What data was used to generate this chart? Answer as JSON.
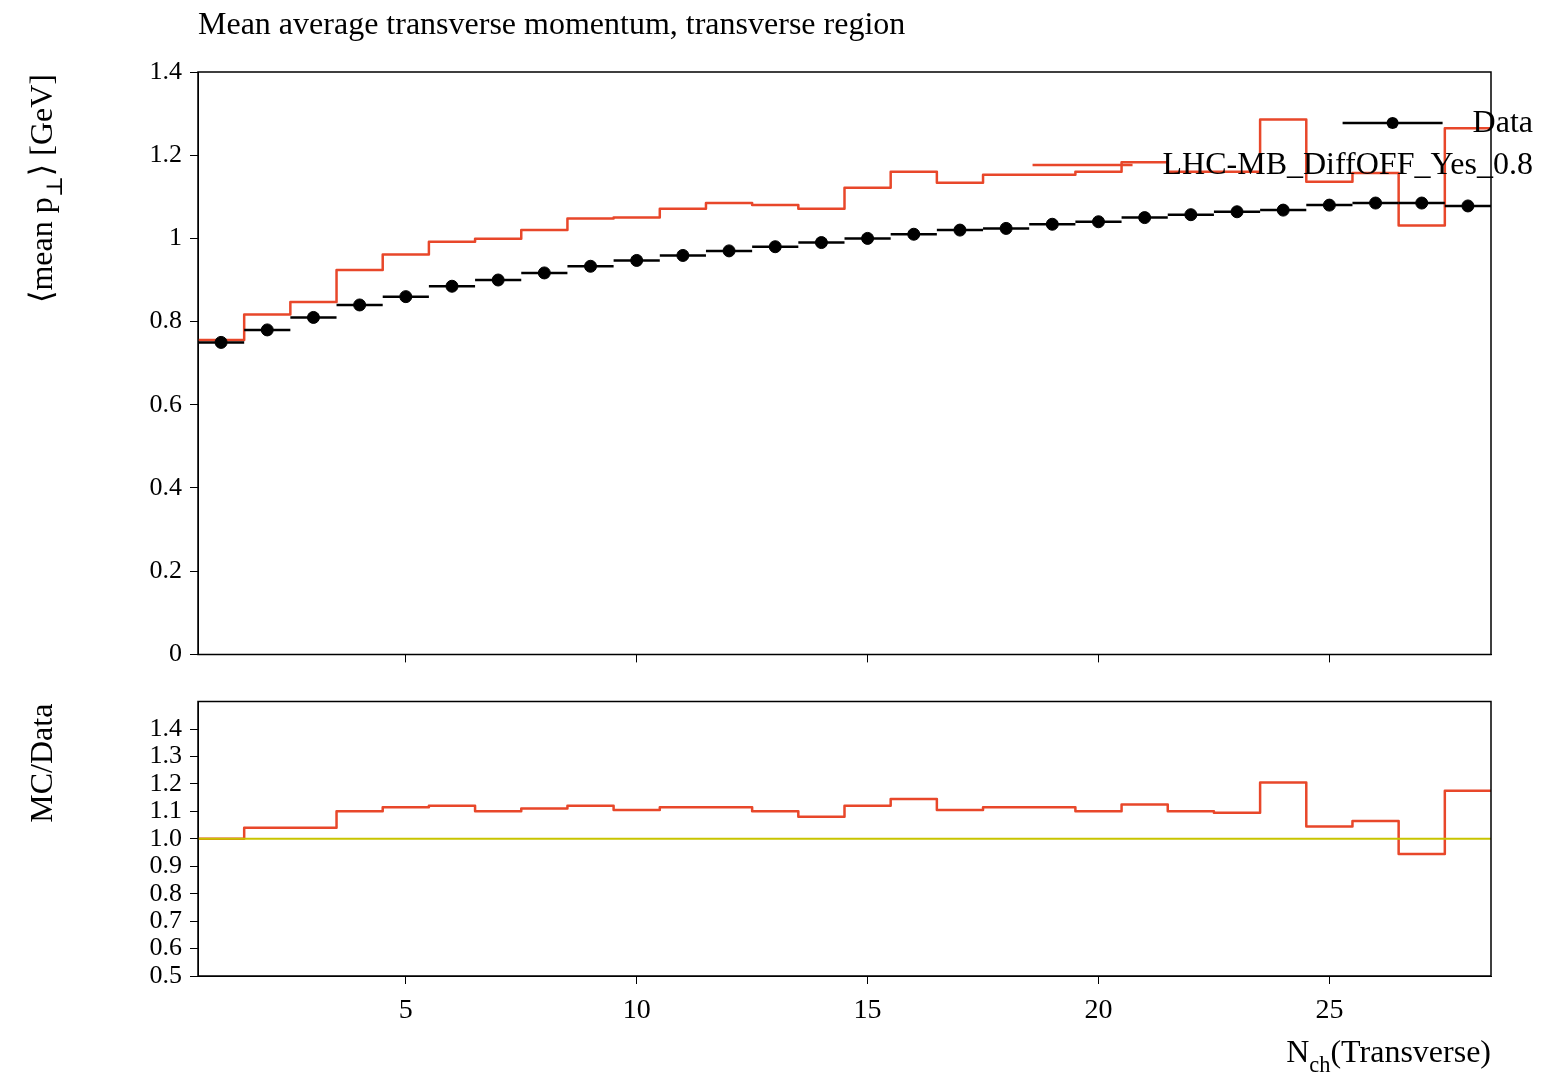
{
  "chart_data": [
    {
      "type": "histogram",
      "bins": [
        0.5,
        1.5,
        2.5,
        3.5,
        4.5,
        5.5,
        6.5,
        7.5,
        8.5,
        9.5,
        10.5,
        11.5,
        12.5,
        13.5,
        14.5,
        15.5,
        16.5,
        17.5,
        18.5,
        19.5,
        20.5,
        21.5,
        22.5,
        23.5,
        24.5,
        25.5,
        26.5,
        27.5,
        28.5
      ],
      "title": "Mean average transverse momentum, transverse region",
      "ylabel": "⟨mean p$_{⊥}$⟩ [GeV]",
      "x": [
        1,
        2,
        3,
        4,
        5,
        6,
        7,
        8,
        9,
        10,
        11,
        12,
        13,
        14,
        15,
        16,
        17,
        18,
        19,
        20,
        21,
        22,
        23,
        24,
        25,
        26,
        27,
        28
      ],
      "series": [
        {
          "name": "Data",
          "type": "scatter",
          "color": "#000000",
          "marker": "circle",
          "values": [
            0.75,
            0.78,
            0.81,
            0.84,
            0.86,
            0.885,
            0.9,
            0.917,
            0.933,
            0.947,
            0.959,
            0.97,
            0.98,
            0.99,
            1.0,
            1.01,
            1.02,
            1.024,
            1.034,
            1.04,
            1.05,
            1.057,
            1.064,
            1.068,
            1.08,
            1.085,
            1.085,
            1.078
          ],
          "xerrors": [
            0.5,
            0.5,
            0.5,
            0.5,
            0.5,
            0.5,
            0.5,
            0.5,
            0.5,
            0.5,
            0.5,
            0.5,
            0.5,
            0.5,
            0.5,
            0.5,
            0.5,
            0.5,
            0.5,
            0.5,
            0.5,
            0.5,
            0.5,
            0.5,
            0.5,
            0.5,
            0.5,
            0.5
          ]
        },
        {
          "name": "LHC-MB_DiffOFF_Yes_0.8",
          "color": "#e8472a",
          "values": [
            0.756,
            0.817,
            0.847,
            0.924,
            0.961,
            0.992,
            0.999,
            1.02,
            1.048,
            1.05,
            1.071,
            1.085,
            1.08,
            1.071,
            1.122,
            1.16,
            1.134,
            1.153,
            1.153,
            1.16,
            1.183,
            1.16,
            1.16,
            1.286,
            1.136,
            1.157,
            1.031,
            1.265
          ]
        }
      ],
      "xlim": [
        0.5,
        28.5
      ],
      "xticks": [
        5,
        10,
        15,
        20,
        25
      ],
      "ylim": [
        0,
        1.4
      ],
      "yticks": [
        0,
        0.2,
        0.4,
        0.6,
        0.8,
        1,
        1.2,
        1.4
      ],
      "tick_labels": "y",
      "grid": false,
      "legend": "top right"
    },
    {
      "type": "histogram",
      "ylabel": "MC/Data",
      "xlabel": "N$_{ch}$(Transverse)",
      "bins": [
        0.5,
        1.5,
        2.5,
        3.5,
        4.5,
        5.5,
        6.5,
        7.5,
        8.5,
        9.5,
        10.5,
        11.5,
        12.5,
        13.5,
        14.5,
        15.5,
        16.5,
        17.5,
        18.5,
        19.5,
        20.5,
        21.5,
        22.5,
        23.5,
        24.5,
        25.5,
        26.5,
        27.5,
        28.5
      ],
      "series": [
        {
          "color": "#e8472a",
          "values": [
            1.0,
            1.04,
            1.04,
            1.1,
            1.115,
            1.12,
            1.1,
            1.11,
            1.12,
            1.105,
            1.115,
            1.115,
            1.1,
            1.08,
            1.12,
            1.145,
            1.105,
            1.115,
            1.115,
            1.1,
            1.125,
            1.1,
            1.095,
            1.205,
            1.045,
            1.065,
            0.945,
            1.175
          ]
        }
      ],
      "ref_lines": [
        {
          "axis": "y",
          "value": 1,
          "color": "#c8c400"
        }
      ],
      "xlim": [
        0.5,
        28.5
      ],
      "xticks": [
        5,
        10,
        15,
        20,
        25
      ],
      "ylim": [
        0.5,
        1.5
      ],
      "yticks": [
        {
          "value": 0.5,
          "label": "0.5"
        },
        {
          "value": 0.6,
          "label": "0.6"
        },
        {
          "value": 0.7,
          "label": "0.7"
        },
        {
          "value": 0.8,
          "label": "0.8"
        },
        {
          "value": 0.9,
          "label": "0.9"
        },
        {
          "value": 1.0,
          "label": "1.0"
        },
        {
          "value": 1.1,
          "label": "1.1"
        },
        {
          "value": 1.2,
          "label": "1.2"
        },
        {
          "value": 1.3,
          "label": "1.3"
        },
        {
          "value": 1.4,
          "label": "1.4"
        }
      ],
      "grid": false
    }
  ]
}
